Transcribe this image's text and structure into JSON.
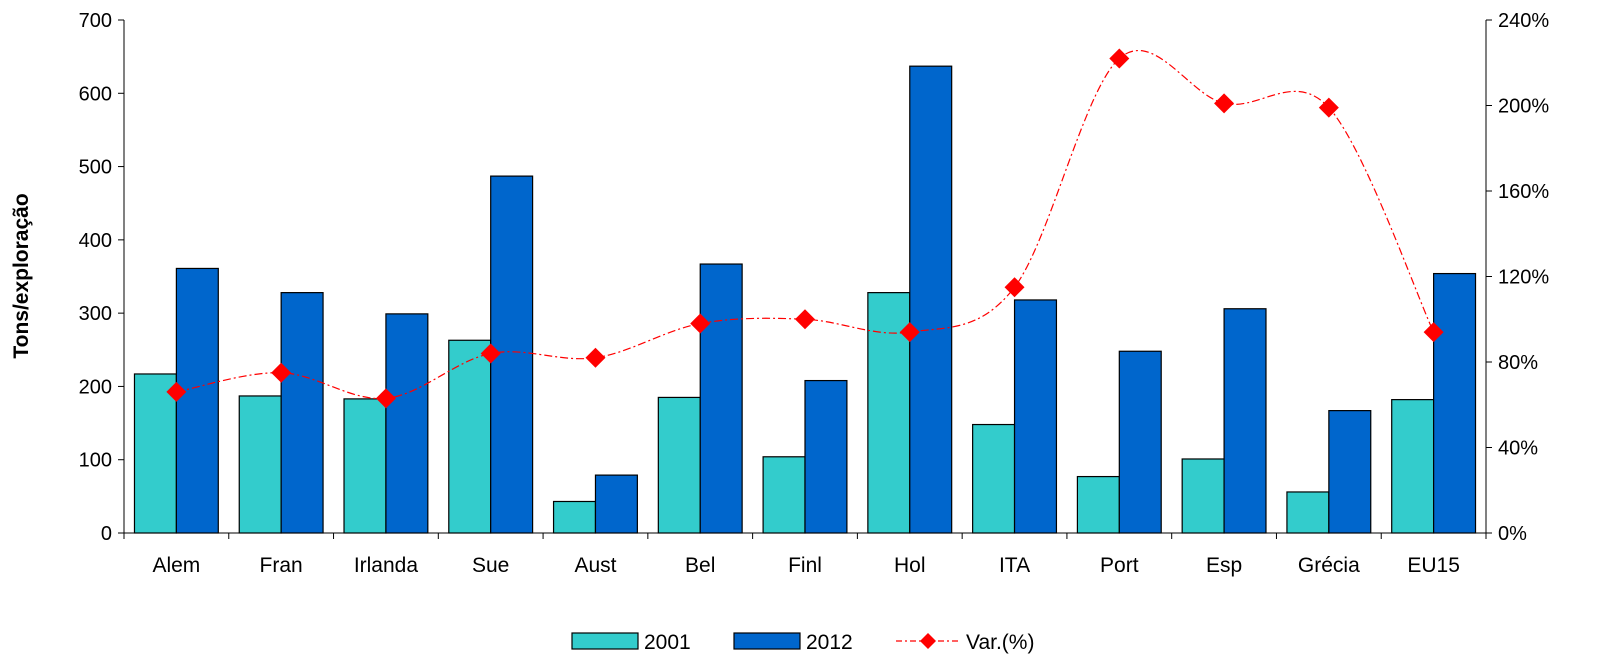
{
  "chart_data": {
    "type": "bar",
    "title": "",
    "xlabel": "",
    "ylabel": "Tons/exploração",
    "y2label": "",
    "categories": [
      "Alem",
      "Fran",
      "Irlanda",
      "Sue",
      "Aust",
      "Bel",
      "Finl",
      "Hol",
      "ITA",
      "Port",
      "Esp",
      "Grécia",
      "EU15"
    ],
    "ylim": [
      0,
      700
    ],
    "yticks": [
      0,
      100,
      200,
      300,
      400,
      500,
      600,
      700
    ],
    "y2lim": [
      0,
      240
    ],
    "y2ticks": [
      0,
      40,
      80,
      120,
      160,
      200,
      240
    ],
    "y2tick_labels": [
      "0%",
      "40%",
      "80%",
      "120%",
      "160%",
      "200%",
      "240%"
    ],
    "grid": false,
    "legend_position": "bottom",
    "series": [
      {
        "name": "2001",
        "type": "bar",
        "axis": "left",
        "color": "#33CCCC",
        "values": [
          217,
          187,
          183,
          263,
          43,
          185,
          104,
          328,
          148,
          77,
          101,
          56,
          182
        ]
      },
      {
        "name": "2012",
        "type": "bar",
        "axis": "left",
        "color": "#0066CC",
        "values": [
          361,
          328,
          299,
          487,
          79,
          367,
          208,
          637,
          318,
          248,
          306,
          167,
          354
        ]
      },
      {
        "name": "Var.(%)",
        "type": "line",
        "axis": "right",
        "color": "#FF0000",
        "marker": "diamond",
        "line_style": "dash-dot",
        "smooth": true,
        "values": [
          66,
          75,
          63,
          84,
          82,
          98,
          100,
          94,
          115,
          222,
          201,
          199,
          94
        ]
      }
    ]
  }
}
